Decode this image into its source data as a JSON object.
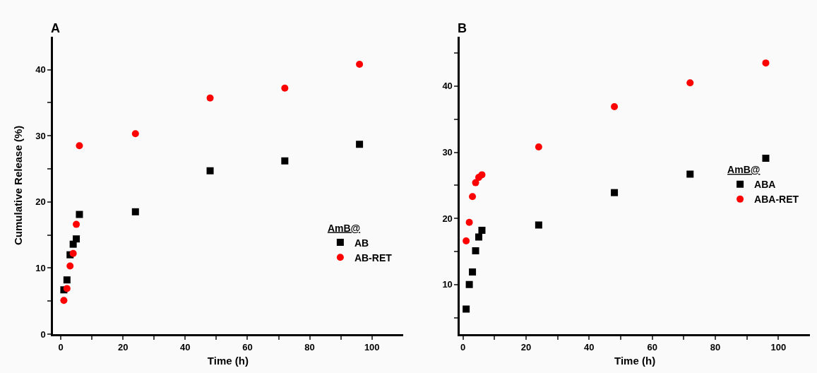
{
  "chart_data": [
    {
      "type": "scatter",
      "title": "A",
      "xlabel": "Time (h)",
      "ylabel": "Cumulative Release (%)",
      "legend_title": "AmB@",
      "legend": "bottom right",
      "x": [
        1,
        2,
        3,
        4,
        5,
        6,
        24,
        48,
        72,
        96
      ],
      "xlim": [
        -2.5,
        110
      ],
      "ylim": [
        0,
        45
      ],
      "xticks": [
        0,
        {
          "value": 10,
          "label": null
        },
        20,
        {
          "value": 30,
          "label": null
        },
        40,
        {
          "value": 50,
          "label": null
        },
        60,
        {
          "value": 70,
          "label": null
        },
        80,
        {
          "value": 90,
          "label": null
        },
        100
      ],
      "yticks": [
        0,
        {
          "value": 5,
          "label": null
        },
        10,
        {
          "value": 15,
          "label": null
        },
        20,
        {
          "value": 25,
          "label": null
        },
        30,
        {
          "value": 35,
          "label": null
        },
        40
      ],
      "series": [
        {
          "name": "AB",
          "color": "#000000",
          "marker": "square",
          "values": [
            6.7,
            8.2,
            12.0,
            13.6,
            14.4,
            18.1,
            18.5,
            24.7,
            26.2,
            28.7
          ]
        },
        {
          "name": "AB-RET",
          "color": "#ff0000",
          "marker": "circle",
          "values": [
            5.1,
            6.9,
            10.3,
            12.2,
            16.6,
            28.5,
            30.3,
            35.7,
            37.2,
            40.8
          ]
        }
      ]
    },
    {
      "type": "scatter",
      "title": "B",
      "xlabel": "Time (h)",
      "legend_title": "AmB@",
      "legend": "right",
      "x": [
        1,
        2,
        3,
        4,
        5,
        6,
        24,
        48,
        72,
        96
      ],
      "xlim": [
        -1,
        110
      ],
      "ylim": [
        2.5,
        47.5
      ],
      "xticks": [
        0,
        {
          "value": 10,
          "label": null
        },
        20,
        {
          "value": 30,
          "label": null
        },
        40,
        {
          "value": 50,
          "label": null
        },
        60,
        {
          "value": 70,
          "label": null
        },
        80,
        {
          "value": 90,
          "label": null
        },
        100
      ],
      "yticks": [
        {
          "value": 5,
          "label": null
        },
        10,
        {
          "value": 15,
          "label": null
        },
        20,
        {
          "value": 25,
          "label": null
        },
        30,
        {
          "value": 35,
          "label": null
        },
        40,
        {
          "value": 45,
          "label": null
        }
      ],
      "series": [
        {
          "name": "ABA",
          "color": "#000000",
          "marker": "square",
          "values": [
            6.3,
            10.0,
            11.9,
            15.1,
            17.2,
            18.2,
            19.0,
            23.9,
            26.7,
            29.1
          ]
        },
        {
          "name": "ABA-RET",
          "color": "#ff0000",
          "marker": "circle",
          "values": [
            16.6,
            19.4,
            23.3,
            25.4,
            26.2,
            26.6,
            30.8,
            36.9,
            40.5,
            43.5
          ]
        }
      ]
    }
  ]
}
